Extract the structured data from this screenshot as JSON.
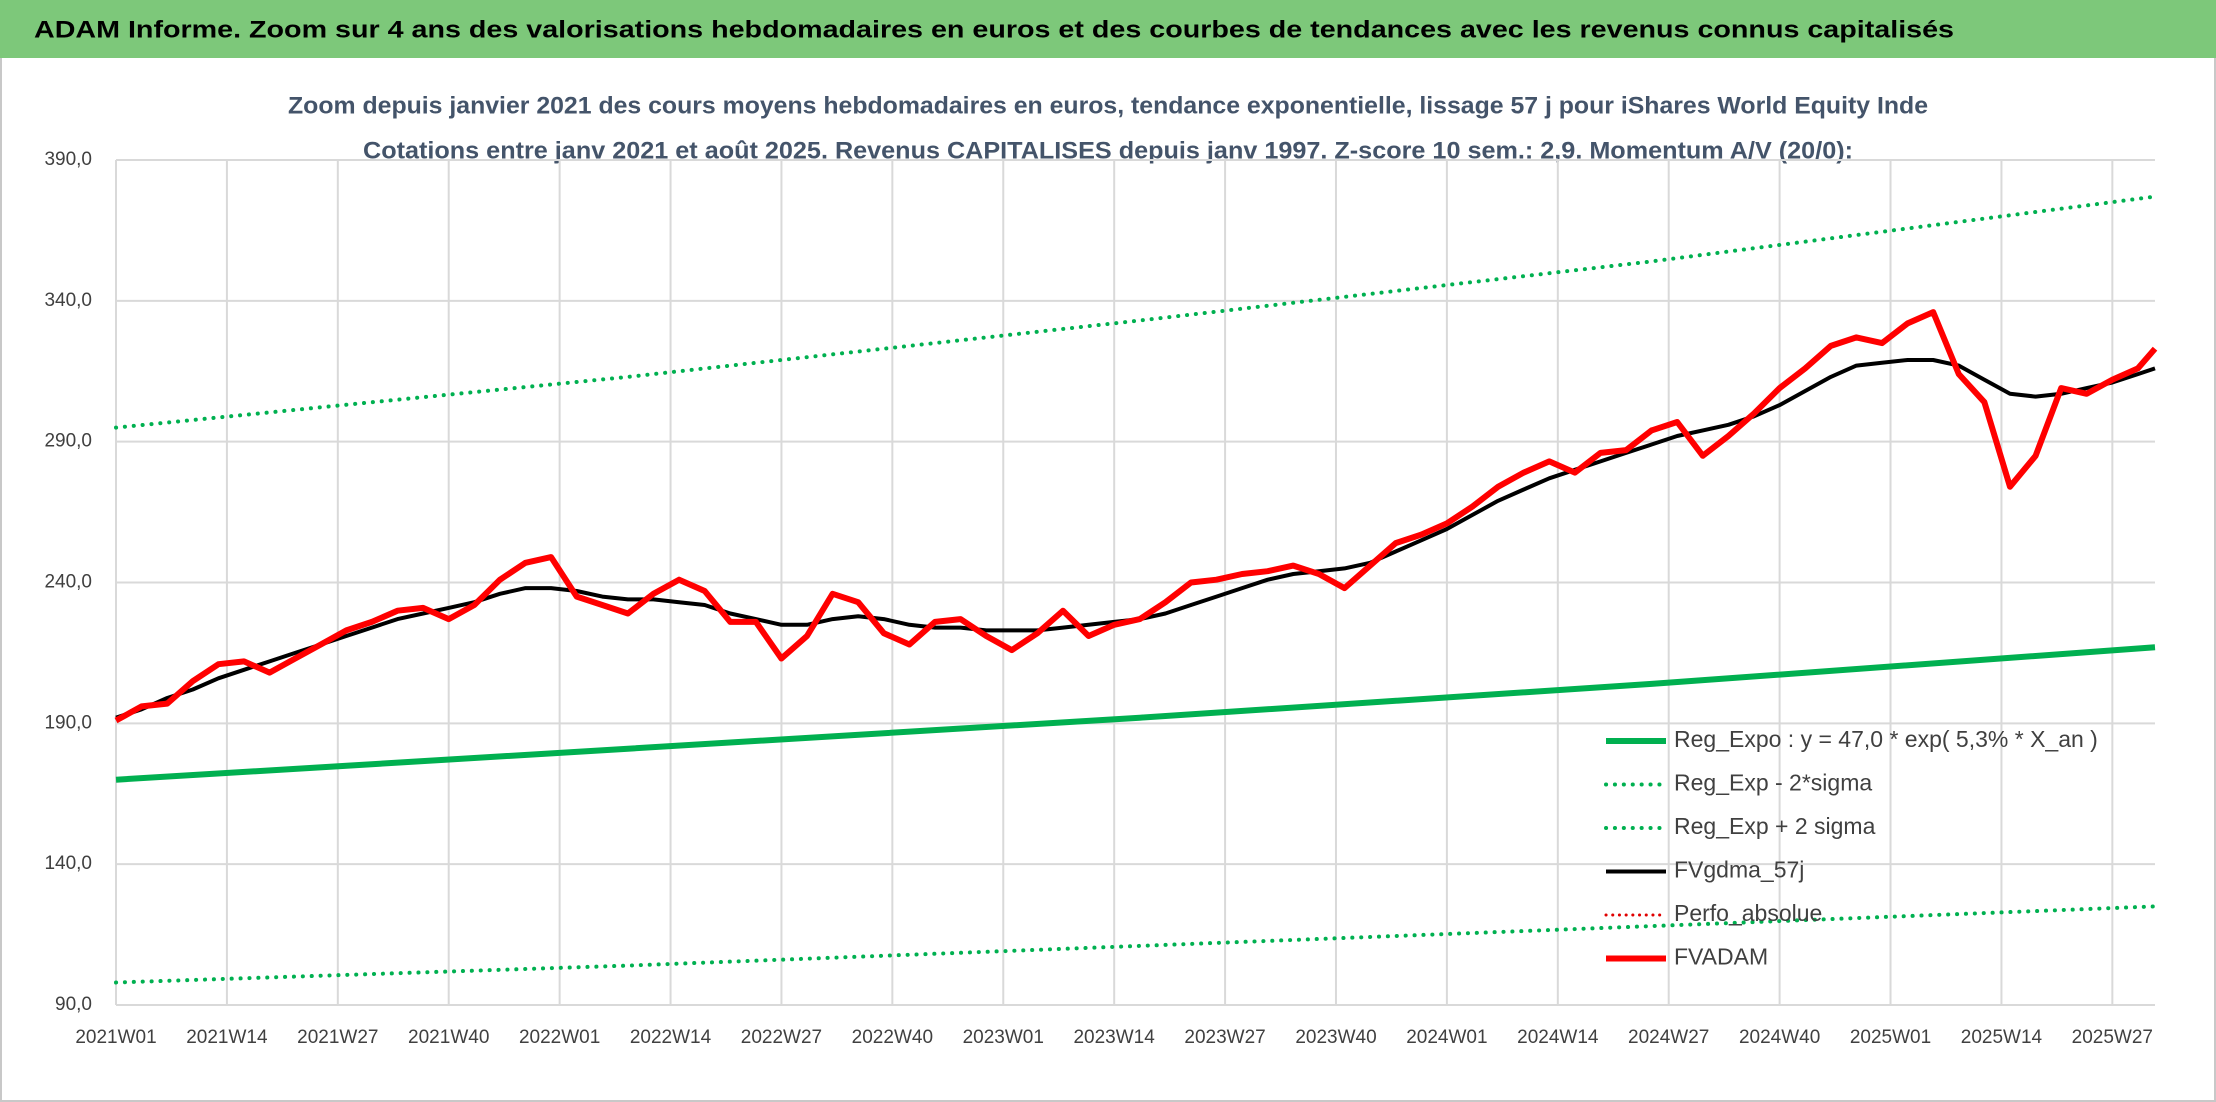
{
  "chart_data": {
    "type": "line",
    "header": "ADAM Informe. Zoom sur 4 ans des valorisations hebdomadaires en euros et des courbes de tendances avec les revenus connus capitalisés",
    "title": "Zoom depuis janvier 2021 des cours moyens hebdomadaires en euros, tendance exponentielle, lissage 57 j pour iShares World Equity Inde",
    "subtitle": "Cotations entre janv 2021 et août 2025. Revenus CAPITALISES depuis janv 1997. Z-score 10 sem.: 2,9. Momentum A/V (20/0):",
    "x": [
      0,
      3,
      6,
      9,
      12,
      15,
      18,
      21,
      24,
      27,
      30,
      33,
      36,
      39,
      42,
      45,
      48,
      51,
      54,
      57,
      60,
      63,
      66,
      69,
      72,
      75,
      78,
      81,
      84,
      87,
      90,
      93,
      96,
      99,
      102,
      105,
      108,
      111,
      114,
      117,
      120,
      123,
      126,
      129,
      132,
      135,
      138,
      141,
      144,
      147,
      150,
      153,
      156,
      159,
      162,
      165,
      168,
      171,
      174,
      177,
      180,
      183,
      186,
      189,
      192,
      195,
      198,
      201,
      204,
      207,
      210,
      213,
      216,
      219,
      222,
      225,
      228,
      231,
      234,
      237,
      239
    ],
    "xlim": [
      0,
      239
    ],
    "xticks": [
      {
        "value": 0,
        "label": "2021W01"
      },
      {
        "value": 13,
        "label": "2021W14"
      },
      {
        "value": 26,
        "label": "2021W27"
      },
      {
        "value": 39,
        "label": "2021W40"
      },
      {
        "value": 52,
        "label": "2022W01"
      },
      {
        "value": 65,
        "label": "2022W14"
      },
      {
        "value": 78,
        "label": "2022W27"
      },
      {
        "value": 91,
        "label": "2022W40"
      },
      {
        "value": 104,
        "label": "2023W01"
      },
      {
        "value": 117,
        "label": "2023W14"
      },
      {
        "value": 130,
        "label": "2023W27"
      },
      {
        "value": 143,
        "label": "2023W40"
      },
      {
        "value": 156,
        "label": "2024W01"
      },
      {
        "value": 169,
        "label": "2024W14"
      },
      {
        "value": 182,
        "label": "2024W27"
      },
      {
        "value": 195,
        "label": "2024W40"
      },
      {
        "value": 208,
        "label": "2025W01"
      },
      {
        "value": 221,
        "label": "2025W14"
      },
      {
        "value": 234,
        "label": "2025W27"
      }
    ],
    "ylim": [
      90,
      390
    ],
    "yticks": [
      {
        "value": 90,
        "label": "90,0"
      },
      {
        "value": 140,
        "label": "140,0"
      },
      {
        "value": 190,
        "label": "190,0"
      },
      {
        "value": 240,
        "label": "240,0"
      },
      {
        "value": 290,
        "label": "290,0"
      },
      {
        "value": 340,
        "label": "340,0"
      },
      {
        "value": 390,
        "label": "390,0"
      }
    ],
    "grid": true,
    "series": [
      {
        "name": "Reg_Expo : y = 47,0 * exp( 5,3% *  X_an )",
        "color": "#00b050",
        "style": "solid",
        "width": 6,
        "x": [
          0,
          60,
          120,
          180,
          239
        ],
        "values": [
          170,
          181,
          192,
          204,
          217
        ]
      },
      {
        "name": "Reg_Exp - 2*sigma",
        "color": "#00b050",
        "style": "dotted",
        "width": 4,
        "x": [
          0,
          60,
          120,
          180,
          239
        ],
        "values": [
          98,
          104,
          111,
          118,
          125
        ]
      },
      {
        "name": "Reg_Exp + 2 sigma",
        "color": "#00b050",
        "style": "dotted",
        "width": 4,
        "x": [
          0,
          60,
          120,
          180,
          239
        ],
        "values": [
          295,
          313,
          333,
          354,
          377
        ]
      },
      {
        "name": "FVgdma_57j",
        "color": "#000000",
        "style": "solid",
        "width": 4,
        "values": [
          192,
          195,
          199,
          202,
          206,
          209,
          212,
          215,
          218,
          221,
          224,
          227,
          229,
          231,
          233,
          236,
          238,
          238,
          237,
          235,
          234,
          234,
          233,
          232,
          229,
          227,
          225,
          225,
          227,
          228,
          227,
          225,
          224,
          224,
          223,
          223,
          223,
          224,
          225,
          226,
          227,
          229,
          232,
          235,
          238,
          241,
          243,
          244,
          245,
          247,
          251,
          255,
          259,
          264,
          269,
          273,
          277,
          280,
          283,
          286,
          289,
          292,
          294,
          296,
          299,
          303,
          308,
          313,
          317,
          318,
          319,
          319,
          317,
          312,
          307,
          306,
          307,
          309,
          311,
          314,
          316
        ]
      },
      {
        "name": "Perfo_absolue",
        "color": "#e00000",
        "style": "dotted",
        "width": 3
      },
      {
        "name": "FVADAM",
        "color": "#ff0000",
        "style": "solid",
        "width": 6,
        "values": [
          191,
          196,
          197,
          205,
          211,
          212,
          208,
          213,
          218,
          223,
          226,
          230,
          231,
          227,
          232,
          241,
          247,
          249,
          235,
          232,
          229,
          236,
          241,
          237,
          226,
          226,
          213,
          221,
          236,
          233,
          222,
          218,
          226,
          227,
          221,
          216,
          222,
          230,
          221,
          225,
          227,
          233,
          240,
          241,
          243,
          244,
          246,
          243,
          238,
          246,
          254,
          257,
          261,
          267,
          274,
          279,
          283,
          279,
          286,
          287,
          294,
          297,
          285,
          292,
          300,
          309,
          316,
          324,
          327,
          325,
          332,
          336,
          314,
          304,
          274,
          285,
          309,
          307,
          312,
          316,
          323
        ]
      }
    ]
  }
}
